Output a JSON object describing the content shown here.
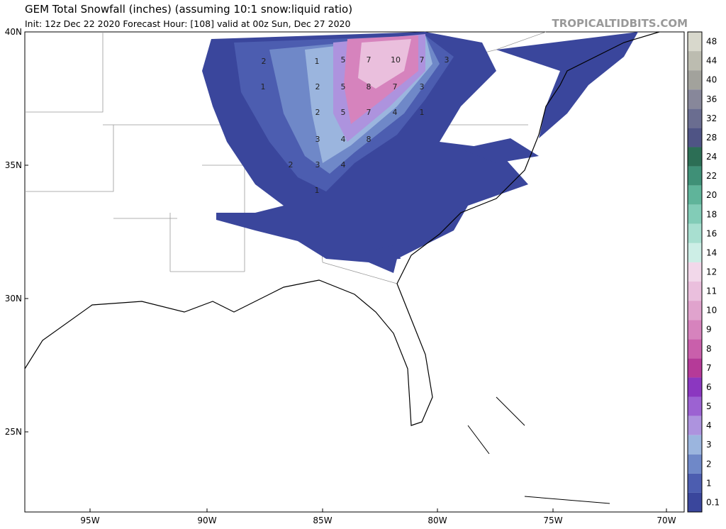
{
  "header": {
    "title": "GEM Total Snowfall (inches) (assuming 10:1 snow:liquid ratio)",
    "subtitle": "Init: 12z Dec 22 2020   Forecast Hour: [108]   valid at 00z Sun, Dec 27 2020",
    "watermark": "TROPICALTIDBITS.COM"
  },
  "lat_labels": [
    "40N",
    "35N",
    "30N",
    "25N"
  ],
  "lon_labels": [
    "95W",
    "90W",
    "85W",
    "80W",
    "75W",
    "70W"
  ],
  "colorbar": {
    "levels": [
      48,
      44,
      40,
      36,
      32,
      28,
      24,
      22,
      20,
      18,
      16,
      14,
      12,
      11,
      10,
      9,
      8,
      7,
      6,
      5,
      4,
      3,
      2,
      1,
      0.1
    ],
    "colors": [
      "#d8d8cc",
      "#bcbcb0",
      "#a2a29c",
      "#87879a",
      "#6a6d90",
      "#4f5485",
      "#2c6e55",
      "#3f9077",
      "#5fb49a",
      "#82ccb7",
      "#a8dfd0",
      "#cdeee6",
      "#f2d8ea",
      "#eabfdd",
      "#e0a3cd",
      "#d683bd",
      "#c95fab",
      "#b53a98",
      "#8b37c0",
      "#9c62d2",
      "#ad93de",
      "#9bb5de",
      "#6f88c8",
      "#4c5db0",
      "#3a469c"
    ]
  },
  "map_labels": [
    2,
    1,
    5,
    7,
    10,
    7,
    3,
    1,
    2,
    5,
    8,
    7,
    3,
    2,
    5,
    7,
    4,
    1,
    3,
    4,
    8,
    2,
    3,
    4,
    1
  ]
}
